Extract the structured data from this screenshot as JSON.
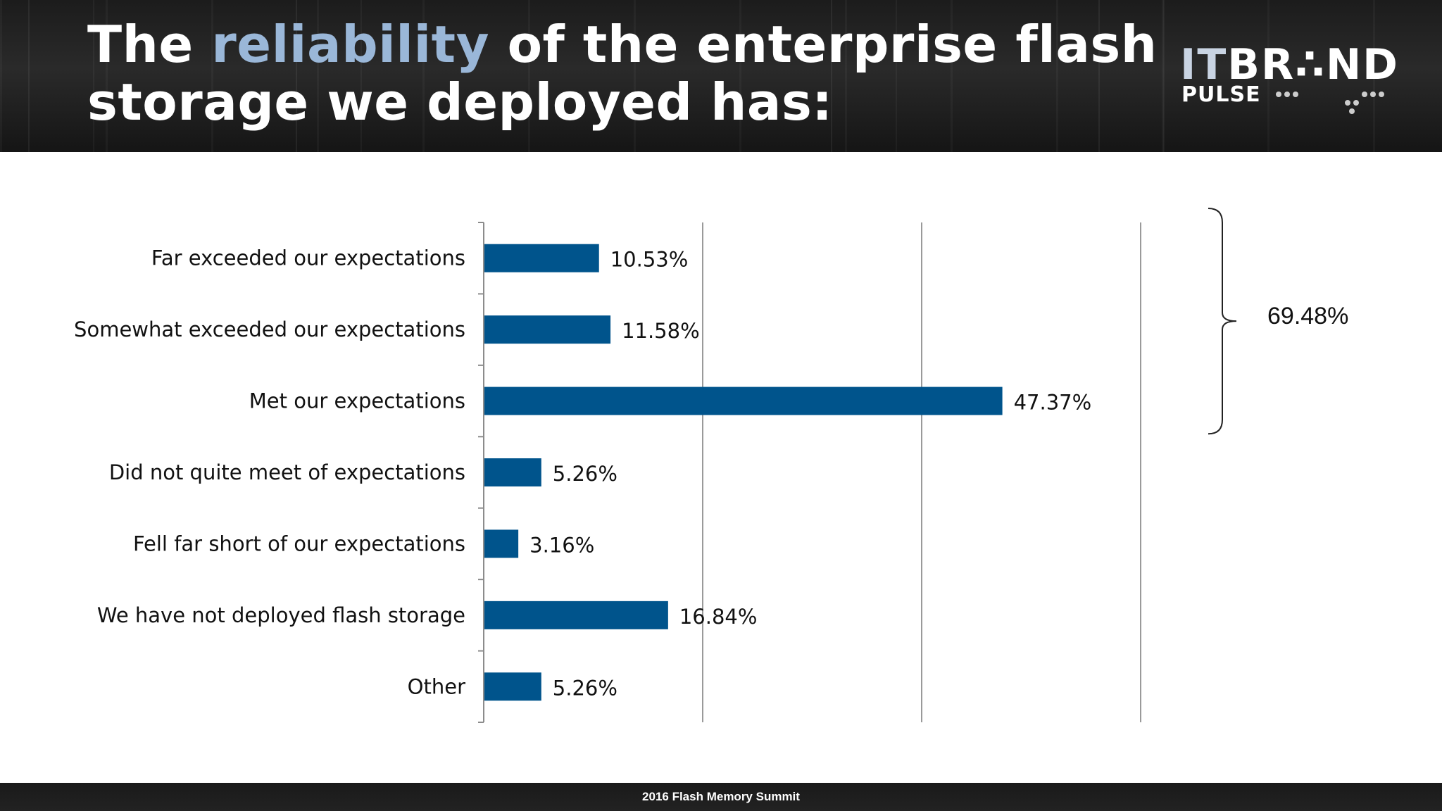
{
  "slide": {
    "title_pre": "The ",
    "title_accent": "reliability",
    "title_post_line1": " of the enterprise flash",
    "title_line2": "storage we deployed has:",
    "logo_it": "IT",
    "logo_brand": "BR∴ND",
    "logo_pulse": "PULSE",
    "bracket_total": "69.48%",
    "footer": "2016 Flash Memory Summit",
    "colors": {
      "bar": "#00548c",
      "title_accent": "#9ab7d8",
      "header_bg": "#1f1f1f"
    }
  },
  "chart_data": {
    "type": "bar",
    "orientation": "horizontal",
    "categories": [
      "Far exceeded our expectations",
      "Somewhat exceeded our expectations",
      "Met our expectations",
      "Did not quite meet of expectations",
      "Fell far short of our expectations",
      "We have not deployed flash storage",
      "Other"
    ],
    "values": [
      10.53,
      11.58,
      47.37,
      5.26,
      3.16,
      16.84,
      5.26
    ],
    "value_labels": [
      "10.53%",
      "11.58%",
      "47.37%",
      "5.26%",
      "3.16%",
      "16.84%",
      "5.26%"
    ],
    "xlim": [
      0,
      60
    ],
    "gridlines_at": [
      20,
      40,
      60
    ],
    "x_tick_labels_shown": false,
    "bracket": {
      "covers_categories": [
        0,
        1,
        2
      ],
      "label": "69.48%"
    }
  }
}
